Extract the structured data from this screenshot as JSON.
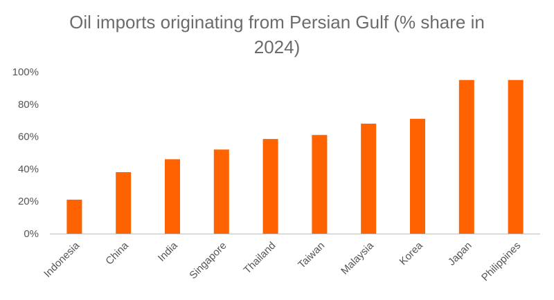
{
  "chart_data": {
    "type": "bar",
    "title_line1": "Oil imports originating from Persian Gulf (% share in",
    "title_line2": "2024)",
    "categories": [
      "Indonesia",
      "China",
      "India",
      "Singapore",
      "Thailand",
      "Taiwan",
      "Malaysia",
      "Korea",
      "Japan",
      "Philippines"
    ],
    "values": [
      21,
      38,
      46,
      52,
      58.5,
      61,
      68,
      71,
      95,
      95
    ],
    "ylim": [
      0,
      100
    ],
    "yticks": [
      0,
      20,
      40,
      60,
      80,
      100
    ],
    "ytick_labels": [
      "0%",
      "20%",
      "40%",
      "60%",
      "80%",
      "100%"
    ],
    "bar_color": "#ff6200",
    "axis_color": "#bfbfbf",
    "grid": false,
    "legend": "none"
  }
}
